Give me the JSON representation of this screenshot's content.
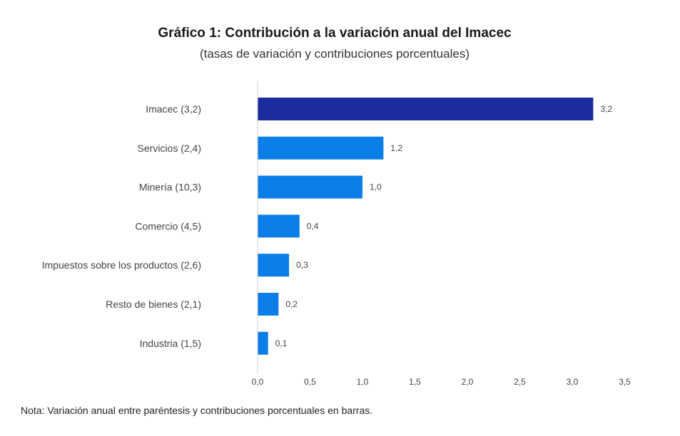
{
  "header": {
    "title": "Gráfico 1: Contribución a la variación anual del Imacec",
    "subtitle": "(tasas de variación y contribuciones porcentuales)"
  },
  "footer": {
    "note": "Nota: Variación anual entre paréntesis y contribuciones porcentuales en barras."
  },
  "chart_data": {
    "type": "bar",
    "orientation": "horizontal",
    "title": "Gráfico 1: Contribución a la variación anual del Imacec",
    "subtitle": "(tasas de variación y contribuciones porcentuales)",
    "categories": [
      "Imacec (3,2)",
      "Servicios (2,4)",
      "Minería (10,3)",
      "Comercio (4,5)",
      "Impuestos sobre los productos (2,6)",
      "Resto de bienes (2,1)",
      "Industria (1,5)"
    ],
    "values": [
      3.2,
      1.2,
      1.0,
      0.4,
      0.3,
      0.2,
      0.1
    ],
    "value_labels": [
      "3,2",
      "1,2",
      "1,0",
      "0,4",
      "0,3",
      "0,2",
      "0,1"
    ],
    "xlim": [
      0,
      3.5
    ],
    "xticks": [
      0,
      0.5,
      1.0,
      1.5,
      2.0,
      2.5,
      3.0,
      3.5
    ],
    "xtick_labels": [
      "0,0",
      "0,5",
      "1,0",
      "1,5",
      "2,0",
      "2,5",
      "3,0",
      "3,5"
    ],
    "colors": [
      "#1a2c9e",
      "#0c7ee8",
      "#0c7ee8",
      "#0c7ee8",
      "#0c7ee8",
      "#0c7ee8",
      "#0c7ee8"
    ],
    "axis_color": "#d0d0d0",
    "grid": false,
    "legend": "none"
  }
}
